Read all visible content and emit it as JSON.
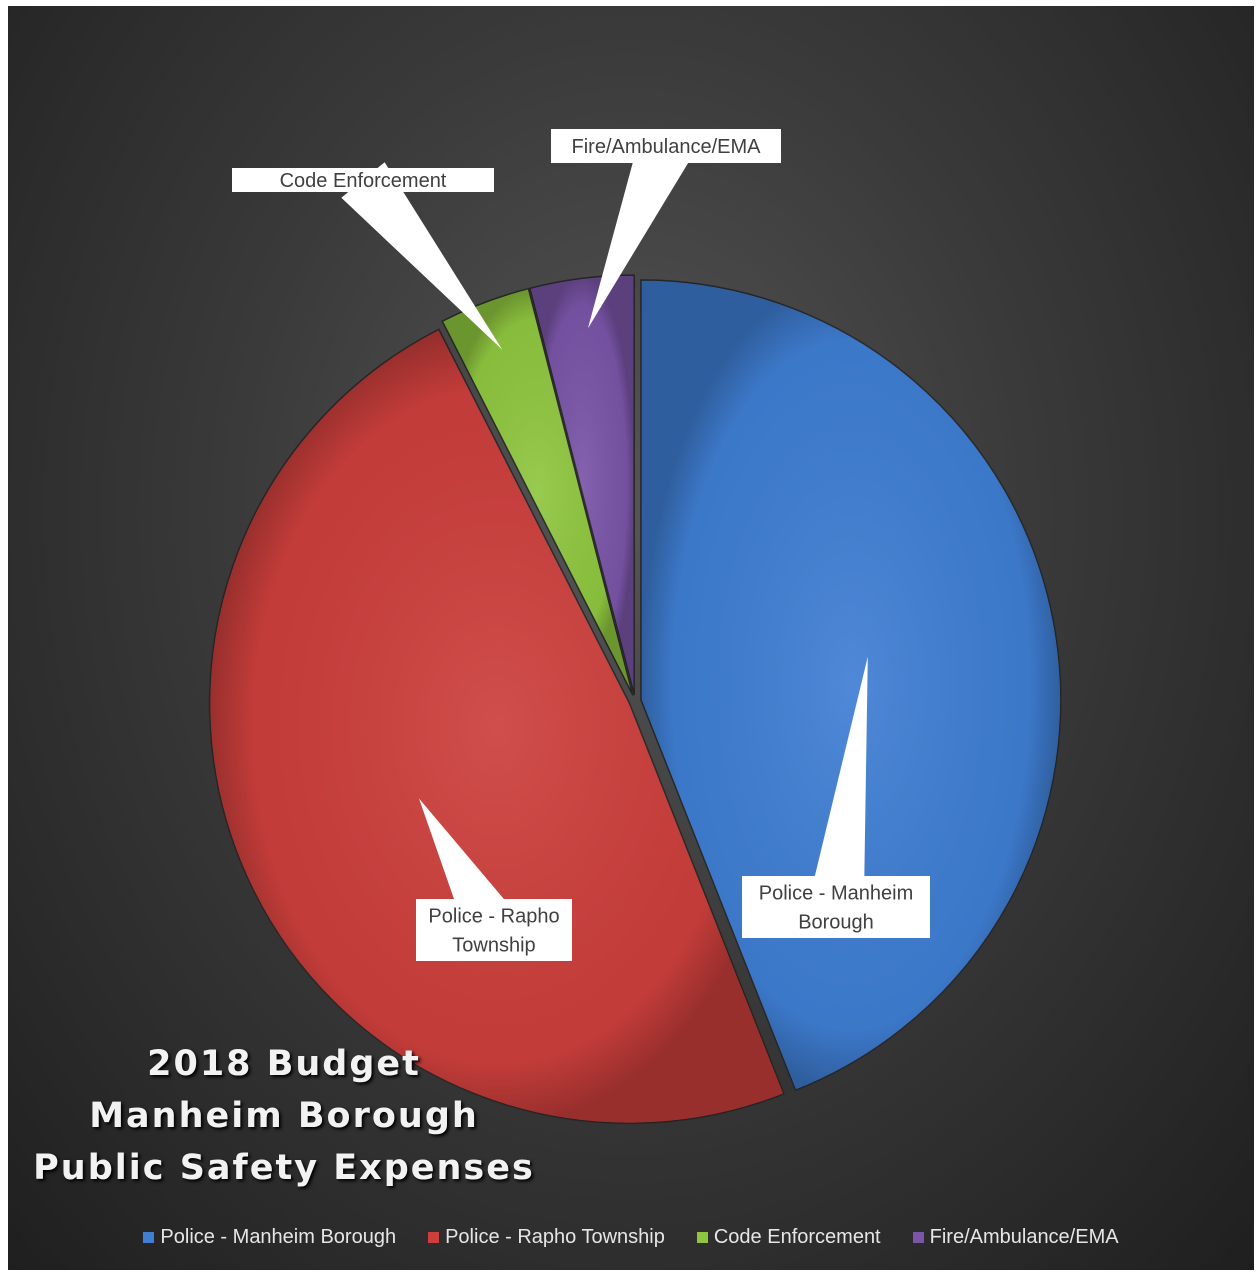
{
  "chart_data": {
    "type": "pie",
    "title": [
      "2018 Budget",
      "Manheim Borough",
      "Public Safety Expenses"
    ],
    "categories": [
      "Police - Manheim Borough",
      "Police - Rapho Township",
      "Code Enforcement",
      "Fire/Ambulance/EMA"
    ],
    "values": [
      44.0,
      48.5,
      3.5,
      4.0
    ],
    "colors": [
      "#3f7ed3",
      "#cc3f3c",
      "#8fc63f",
      "#7a55a8"
    ],
    "data_labels": [
      [
        "Police - Manheim",
        "Borough"
      ],
      [
        "Police - Rapho",
        "Township"
      ],
      [
        "Code Enforcement"
      ],
      [
        "Fire/Ambulance/EMA"
      ]
    ],
    "legend_position": "bottom",
    "background": "#333333"
  }
}
